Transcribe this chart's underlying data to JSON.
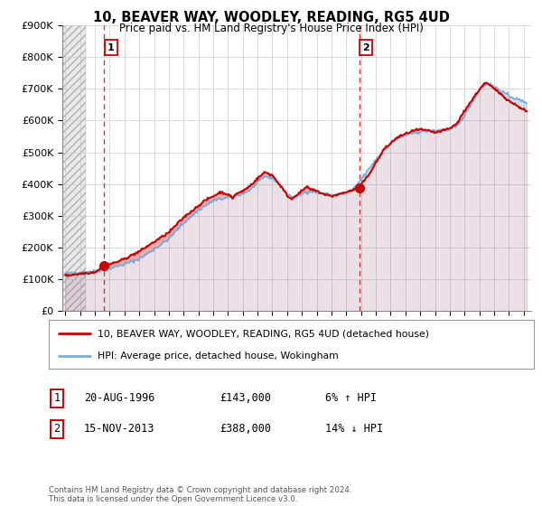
{
  "title": "10, BEAVER WAY, WOODLEY, READING, RG5 4UD",
  "subtitle": "Price paid vs. HM Land Registry's House Price Index (HPI)",
  "legend_line1": "10, BEAVER WAY, WOODLEY, READING, RG5 4UD (detached house)",
  "legend_line2": "HPI: Average price, detached house, Wokingham",
  "sale1_date": "20-AUG-1996",
  "sale1_price": "£143,000",
  "sale1_hpi": "6% ↑ HPI",
  "sale2_date": "15-NOV-2013",
  "sale2_price": "£388,000",
  "sale2_hpi": "14% ↓ HPI",
  "footer": "Contains HM Land Registry data © Crown copyright and database right 2024.\nThis data is licensed under the Open Government Licence v3.0.",
  "line_color_red": "#cc0000",
  "line_color_blue": "#7aacda",
  "sale1_x": 1996.64,
  "sale2_x": 2013.88,
  "sale1_y": 143000,
  "sale2_y": 388000,
  "ylim": [
    0,
    900000
  ],
  "xlim_start": 1993.8,
  "xlim_end": 2025.5,
  "grid_color": "#cccccc",
  "plot_bg": "#ffffff",
  "hatch_region_end": 1995.4
}
